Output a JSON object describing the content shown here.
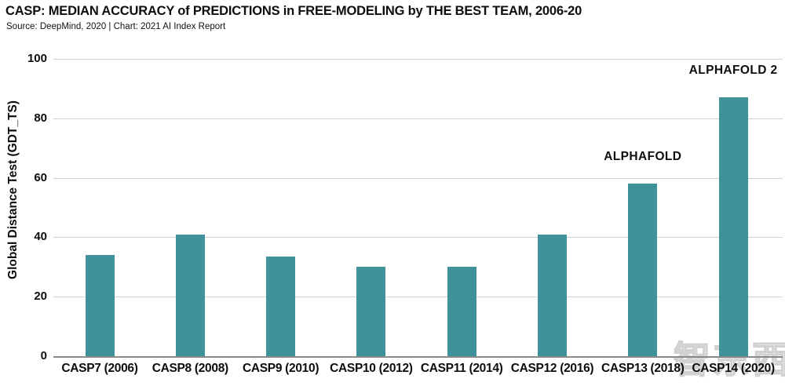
{
  "header": {
    "title": "CASP: MEDIAN ACCURACY of PREDICTIONS in FREE-MODELING by THE BEST TEAM, 2006-20",
    "subtitle": "Source: DeepMind, 2020 | Chart: 2021 AI Index Report"
  },
  "watermark": {
    "text": "智东西"
  },
  "chart_data": {
    "type": "bar",
    "title": "CASP: MEDIAN ACCURACY of PREDICTIONS in FREE-MODELING by THE BEST TEAM, 2006-20",
    "categories": [
      "CASP7 (2006)",
      "CASP8 (2008)",
      "CASP9 (2010)",
      "CASP10 (2012)",
      "CASP11 (2014)",
      "CASP12 (2016)",
      "CASP13 (2018)",
      "CASP14 (2020)"
    ],
    "values": [
      34,
      41,
      33.5,
      30,
      30,
      41,
      58,
      87
    ],
    "xlabel": "",
    "ylabel": "Global Distance Test (GDT_TS)",
    "ylim": [
      0,
      100
    ],
    "yticks": [
      0,
      20,
      40,
      60,
      80,
      100
    ],
    "grid": "horizontal",
    "legend": "none",
    "bar_color": "#3F9299",
    "annotations": [
      {
        "text": "ALPHAFOLD",
        "category_index": 6
      },
      {
        "text": "ALPHAFOLD 2",
        "category_index": 7
      }
    ]
  }
}
